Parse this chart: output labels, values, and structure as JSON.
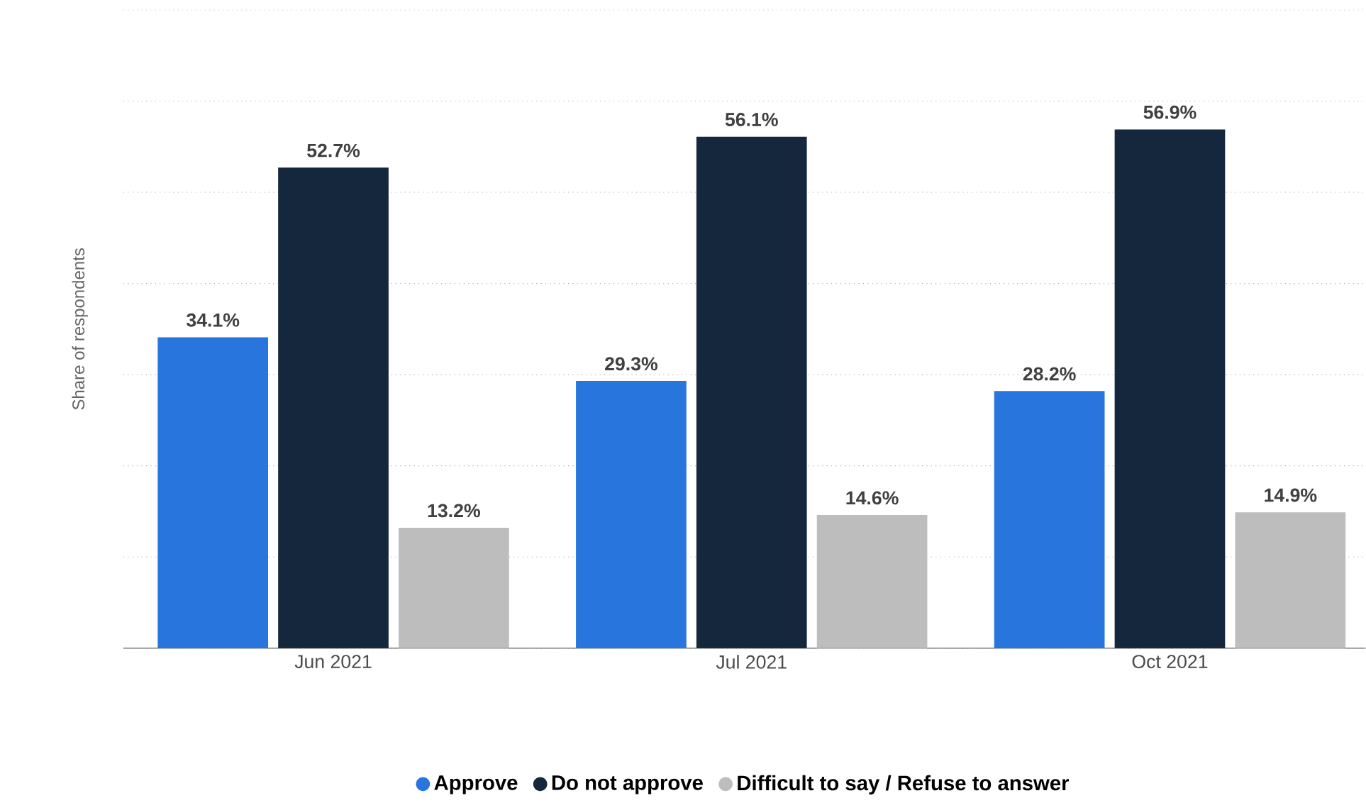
{
  "chart_data": {
    "type": "bar",
    "ylabel": "Share of respondents",
    "categories": [
      "Jun 2021",
      "Jul 2021",
      "Oct 2021"
    ],
    "series": [
      {
        "name": "Approve",
        "color": "#2876dd",
        "values": [
          34.1,
          29.3,
          28.2
        ],
        "value_labels": [
          "34.1%",
          "29.3%",
          "28.2%"
        ]
      },
      {
        "name": "Do not approve",
        "color": "#14273d",
        "values": [
          52.7,
          56.1,
          56.9
        ],
        "value_labels": [
          "52.7%",
          "56.1%",
          "56.9%"
        ]
      },
      {
        "name": "Difficult to say / Refuse to answer",
        "color": "#bdbdbd",
        "values": [
          13.2,
          14.6,
          14.9
        ],
        "value_labels": [
          "13.2%",
          "14.6%",
          "14.9%"
        ]
      }
    ],
    "ylim": [
      0,
      70
    ],
    "yticks": [
      {
        "value": 0,
        "label": null
      },
      {
        "value": 10,
        "label": null
      },
      {
        "value": 20,
        "label": null
      },
      {
        "value": 30,
        "label": null
      },
      {
        "value": 40,
        "label": null
      },
      {
        "value": 50,
        "label": null
      },
      {
        "value": 60,
        "label": null
      },
      {
        "value": 70,
        "label": null
      }
    ],
    "tick_labels": "x",
    "grid": "y",
    "legend": "bottom"
  }
}
